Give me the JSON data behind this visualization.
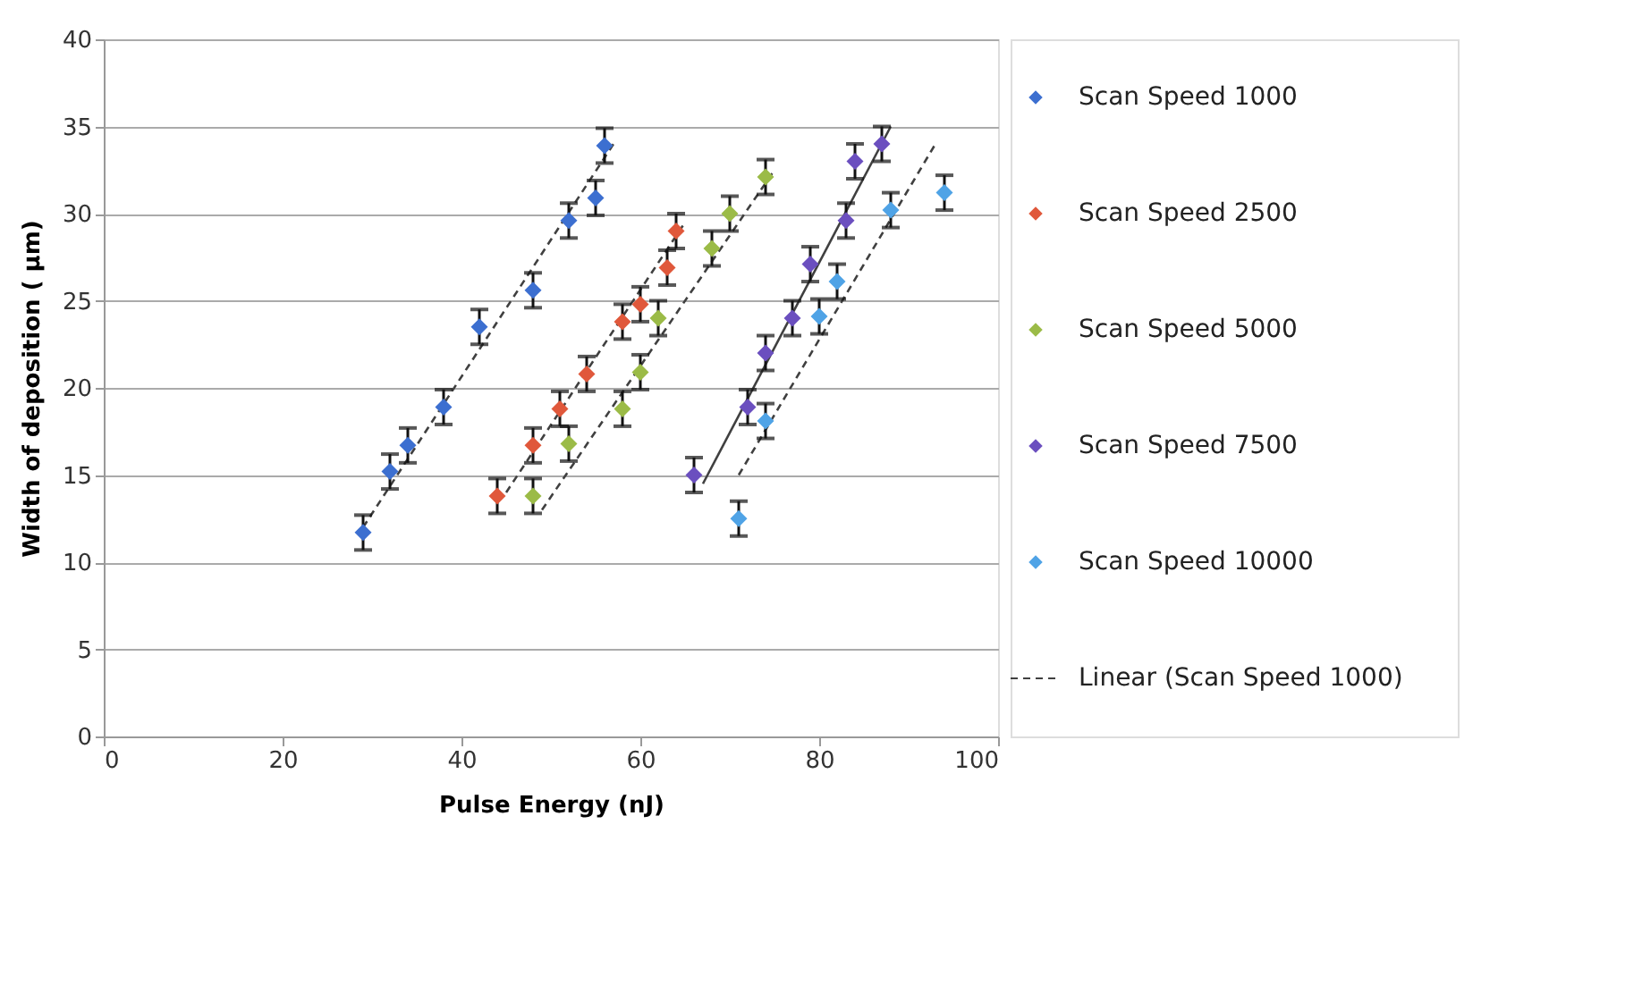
{
  "chart_data": {
    "type": "scatter",
    "xlabel": "Pulse Energy (nJ)",
    "ylabel": "Width of deposition ( µm)",
    "xlim": [
      0,
      100
    ],
    "xticks": [
      0,
      20,
      40,
      60,
      80,
      100
    ],
    "ylim": [
      0,
      40
    ],
    "yticks": [
      0,
      5,
      10,
      15,
      20,
      25,
      30,
      35,
      40
    ],
    "grid": "y",
    "legend": "right",
    "series": [
      {
        "name": "Scan Speed 1000",
        "marker": "diamond",
        "color": "#3c6fd0",
        "x": [
          29,
          32,
          34,
          38,
          42,
          48,
          52,
          55,
          56
        ],
        "values": [
          11.7,
          15.2,
          16.7,
          18.9,
          23.5,
          25.6,
          29.6,
          30.9,
          33.9
        ],
        "errors": [
          1,
          1,
          1,
          1,
          1,
          1,
          1,
          1,
          1
        ]
      },
      {
        "name": "Scan Speed 2500",
        "marker": "diamond",
        "color": "#e0583b",
        "x": [
          44,
          48,
          51,
          54,
          58,
          60,
          63,
          64
        ],
        "values": [
          13.8,
          16.7,
          18.8,
          20.8,
          23.8,
          24.8,
          26.9,
          29.0
        ],
        "errors": [
          1,
          1,
          1,
          1,
          1,
          1,
          1,
          1
        ]
      },
      {
        "name": "Scan Speed 5000",
        "marker": "diamond",
        "color": "#9bbb47",
        "x": [
          48,
          52,
          58,
          60,
          62,
          68,
          70,
          74
        ],
        "values": [
          13.8,
          16.8,
          18.8,
          20.9,
          24.0,
          28.0,
          30.0,
          32.1
        ],
        "errors": [
          1,
          1,
          1,
          1,
          1,
          1,
          1,
          1
        ]
      },
      {
        "name": "Scan Speed 7500",
        "marker": "diamond",
        "color": "#6b4fbf",
        "x": [
          66,
          72,
          74,
          77,
          79,
          83,
          84,
          87
        ],
        "values": [
          15.0,
          18.9,
          22.0,
          24.0,
          27.1,
          29.6,
          33.0,
          34.0
        ],
        "errors": [
          1,
          1,
          1,
          1,
          1,
          1,
          1,
          1
        ]
      },
      {
        "name": "Scan Speed 10000",
        "marker": "diamond",
        "color": "#4fa3e6",
        "x": [
          71,
          74,
          80,
          82,
          88,
          94
        ],
        "values": [
          12.5,
          18.1,
          24.1,
          26.1,
          30.2,
          31.2
        ],
        "errors": [
          1,
          1,
          1,
          1,
          1,
          1
        ]
      },
      {
        "name": "Linear (Scan Speed 1000)",
        "type": "line",
        "marker": "none",
        "line_style": "dashed",
        "color": "#404040",
        "x": [
          29,
          57
        ],
        "values": [
          12,
          34
        ]
      },
      {
        "type": "line",
        "marker": "none",
        "line_style": "dashed",
        "color": "#404040",
        "x": [
          45,
          65
        ],
        "values": [
          14,
          29.5
        ]
      },
      {
        "type": "line",
        "marker": "none",
        "line_style": "dashed",
        "color": "#404040",
        "x": [
          49,
          75
        ],
        "values": [
          13,
          32.5
        ]
      },
      {
        "type": "line",
        "marker": "none",
        "line_style": "solid",
        "color": "#404040",
        "x": [
          67,
          88
        ],
        "values": [
          14.5,
          35
        ]
      },
      {
        "type": "line",
        "marker": "none",
        "line_style": "dashed",
        "color": "#404040",
        "x": [
          71,
          93
        ],
        "values": [
          15,
          34
        ]
      }
    ]
  }
}
